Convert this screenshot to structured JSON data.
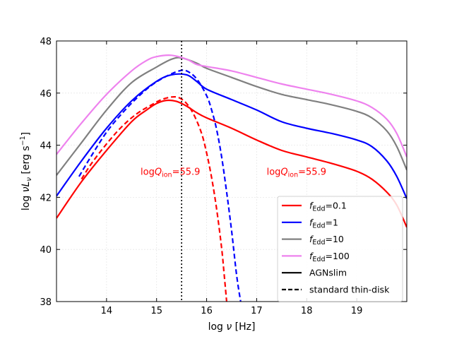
{
  "chart_data": {
    "type": "line",
    "title": "",
    "xlabel": "log ν [Hz]",
    "xlabel_parts": {
      "pre": "log ",
      "sym": "ν",
      "post": " [Hz]"
    },
    "ylabel": "log νLν [erg s⁻¹]",
    "ylabel_parts": {
      "pre": "log ",
      "sym": "ν",
      "sym2": "L",
      "sub": "ν",
      "unit_pre": " [erg s",
      "exp": "−1",
      "unit_post": "]"
    },
    "xlim": [
      13.0,
      20.0
    ],
    "ylim": [
      38,
      48
    ],
    "xticks": [
      14,
      15,
      16,
      17,
      18,
      19
    ],
    "yticks": [
      38,
      40,
      42,
      44,
      46,
      48
    ],
    "grid": true,
    "vline": {
      "x": 15.5,
      "style": "dotted",
      "color": "#000000"
    },
    "annotations": [
      {
        "pre": "log",
        "italic": "Q",
        "sub": "ion",
        "post": "=55.9",
        "x": 14.68,
        "y": 43.0,
        "color": "#ff0000"
      },
      {
        "pre": "log",
        "italic": "Q",
        "sub": "ion",
        "post": "=55.9",
        "x": 17.2,
        "y": 43.0,
        "color": "#ff0000"
      }
    ],
    "series": [
      {
        "name": "fEdd=0.1 AGNslim",
        "group": "0.1",
        "style": "solid",
        "color": "#ff0000",
        "x": [
          13.0,
          13.5,
          14.0,
          14.5,
          14.8,
          15.0,
          15.2,
          15.4,
          15.6,
          15.8,
          16.0,
          16.5,
          17.0,
          17.5,
          18.0,
          18.5,
          19.0,
          19.3,
          19.6,
          19.8,
          20.0
        ],
        "y": [
          41.2,
          42.6,
          43.8,
          44.9,
          45.35,
          45.6,
          45.72,
          45.68,
          45.5,
          45.25,
          45.05,
          44.65,
          44.2,
          43.8,
          43.55,
          43.3,
          43.0,
          42.7,
          42.2,
          41.7,
          40.85
        ]
      },
      {
        "name": "fEdd=1 AGNslim",
        "group": "1",
        "style": "solid",
        "color": "#0000ff",
        "x": [
          13.0,
          13.5,
          14.0,
          14.5,
          15.0,
          15.3,
          15.6,
          15.8,
          16.0,
          16.5,
          17.0,
          17.5,
          18.0,
          18.5,
          19.0,
          19.3,
          19.6,
          19.8,
          20.0
        ],
        "y": [
          42.05,
          43.4,
          44.65,
          45.7,
          46.45,
          46.7,
          46.7,
          46.45,
          46.15,
          45.75,
          45.35,
          44.9,
          44.65,
          44.45,
          44.2,
          43.95,
          43.4,
          42.8,
          41.95
        ]
      },
      {
        "name": "fEdd=10 AGNslim",
        "group": "10",
        "style": "solid",
        "color": "#808080",
        "x": [
          13.0,
          13.5,
          14.0,
          14.5,
          15.0,
          15.3,
          15.5,
          15.8,
          16.0,
          16.5,
          17.0,
          17.5,
          18.0,
          18.5,
          19.0,
          19.3,
          19.6,
          19.8,
          20.0
        ],
        "y": [
          42.85,
          44.1,
          45.35,
          46.4,
          47.0,
          47.3,
          47.35,
          47.15,
          46.95,
          46.6,
          46.25,
          45.95,
          45.75,
          45.55,
          45.3,
          45.05,
          44.55,
          43.95,
          43.05
        ]
      },
      {
        "name": "fEdd=100 AGNslim",
        "group": "100",
        "style": "solid",
        "color": "#ee82ee",
        "x": [
          13.0,
          13.5,
          14.0,
          14.5,
          14.8,
          15.0,
          15.3,
          15.6,
          15.8,
          16.0,
          16.5,
          17.0,
          17.5,
          18.0,
          18.5,
          19.0,
          19.3,
          19.6,
          19.8,
          20.0
        ],
        "y": [
          43.65,
          44.85,
          45.95,
          46.85,
          47.25,
          47.4,
          47.45,
          47.3,
          47.1,
          47.02,
          46.85,
          46.6,
          46.35,
          46.15,
          45.95,
          45.7,
          45.45,
          45.0,
          44.45,
          43.55
        ]
      },
      {
        "name": "fEdd=0.1 standard thin-disk",
        "group": "0.1",
        "style": "dashed",
        "color": "#ff0000",
        "x": [
          13.5,
          13.7,
          14.0,
          14.3,
          14.6,
          14.9,
          15.1,
          15.3,
          15.45,
          15.6,
          15.75,
          15.9,
          16.0,
          16.1,
          16.2,
          16.3,
          16.35,
          16.4
        ],
        "y": [
          42.7,
          43.3,
          44.05,
          44.7,
          45.2,
          45.55,
          45.75,
          45.85,
          45.82,
          45.6,
          45.15,
          44.45,
          43.7,
          42.75,
          41.55,
          40.05,
          39.05,
          38.0
        ]
      },
      {
        "name": "fEdd=1 standard thin-disk",
        "group": "1",
        "style": "dashed",
        "color": "#0000ff",
        "x": [
          13.45,
          13.7,
          14.0,
          14.3,
          14.6,
          14.9,
          15.2,
          15.45,
          15.6,
          15.8,
          16.0,
          16.1,
          16.2,
          16.3,
          16.4,
          16.5,
          16.6,
          16.68
        ],
        "y": [
          42.8,
          43.6,
          44.5,
          45.2,
          45.8,
          46.3,
          46.65,
          46.85,
          46.85,
          46.55,
          45.9,
          45.35,
          44.6,
          43.55,
          42.2,
          40.7,
          39.0,
          38.0
        ]
      }
    ],
    "legend": {
      "position": "lower-right",
      "entries": [
        {
          "label_italic": "f",
          "label_sub": "Edd",
          "label_post": "=0.1",
          "color": "#ff0000",
          "style": "solid"
        },
        {
          "label_italic": "f",
          "label_sub": "Edd",
          "label_post": "=1",
          "color": "#0000ff",
          "style": "solid"
        },
        {
          "label_italic": "f",
          "label_sub": "Edd",
          "label_post": "=10",
          "color": "#808080",
          "style": "solid"
        },
        {
          "label_italic": "f",
          "label_sub": "Edd",
          "label_post": "=100",
          "color": "#ee82ee",
          "style": "solid"
        },
        {
          "label_plain": "AGNslim",
          "color": "#000000",
          "style": "solid"
        },
        {
          "label_plain": "standard thin-disk",
          "color": "#000000",
          "style": "dashed"
        }
      ]
    }
  }
}
